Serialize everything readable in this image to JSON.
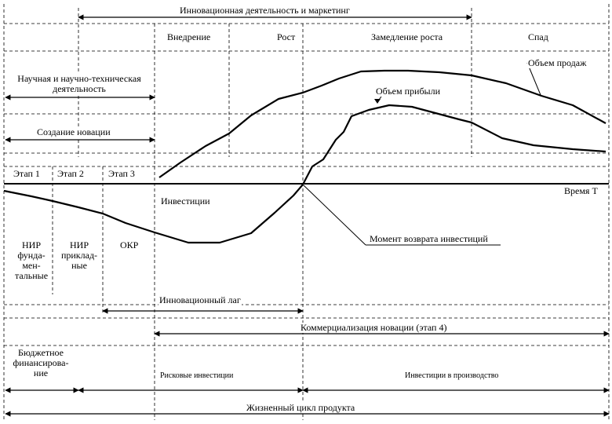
{
  "top_span": {
    "label": "Инновационная деятельность и маркетинг"
  },
  "phases": [
    "Внедрение",
    "Рост",
    "Замедление роста",
    "Спад"
  ],
  "science_activity": {
    "label": "Научная и научно-техническая деятельность"
  },
  "novelty_creation": {
    "label": "Создание новации"
  },
  "stages": [
    "Этап 1",
    "Этап 2",
    "Этап 3"
  ],
  "time_axis": {
    "label": "Время T"
  },
  "curves": {
    "sales": "Объем продаж",
    "profit": "Объем прибыли",
    "investments": "Инвестиции"
  },
  "research": {
    "fundamental": "НИР фунда-мен-тальные",
    "applied": "НИР приклад-ные",
    "okr": "ОКР"
  },
  "payback": {
    "label": "Момент возврата инвестиций"
  },
  "lag": {
    "label": "Инновационный лаг"
  },
  "commercialization": {
    "label": "Коммерциализация новации (этап 4)"
  },
  "financing": {
    "budget": "Бюджетное финансирова-ние",
    "risk": "Рисковые инвестиции",
    "production": "Инвестиции в производство"
  },
  "lifecycle": {
    "label": "Жизненный цикл продукта"
  },
  "colors": {
    "ink": "#000000",
    "grid": "#000000",
    "background": "#ffffff"
  }
}
